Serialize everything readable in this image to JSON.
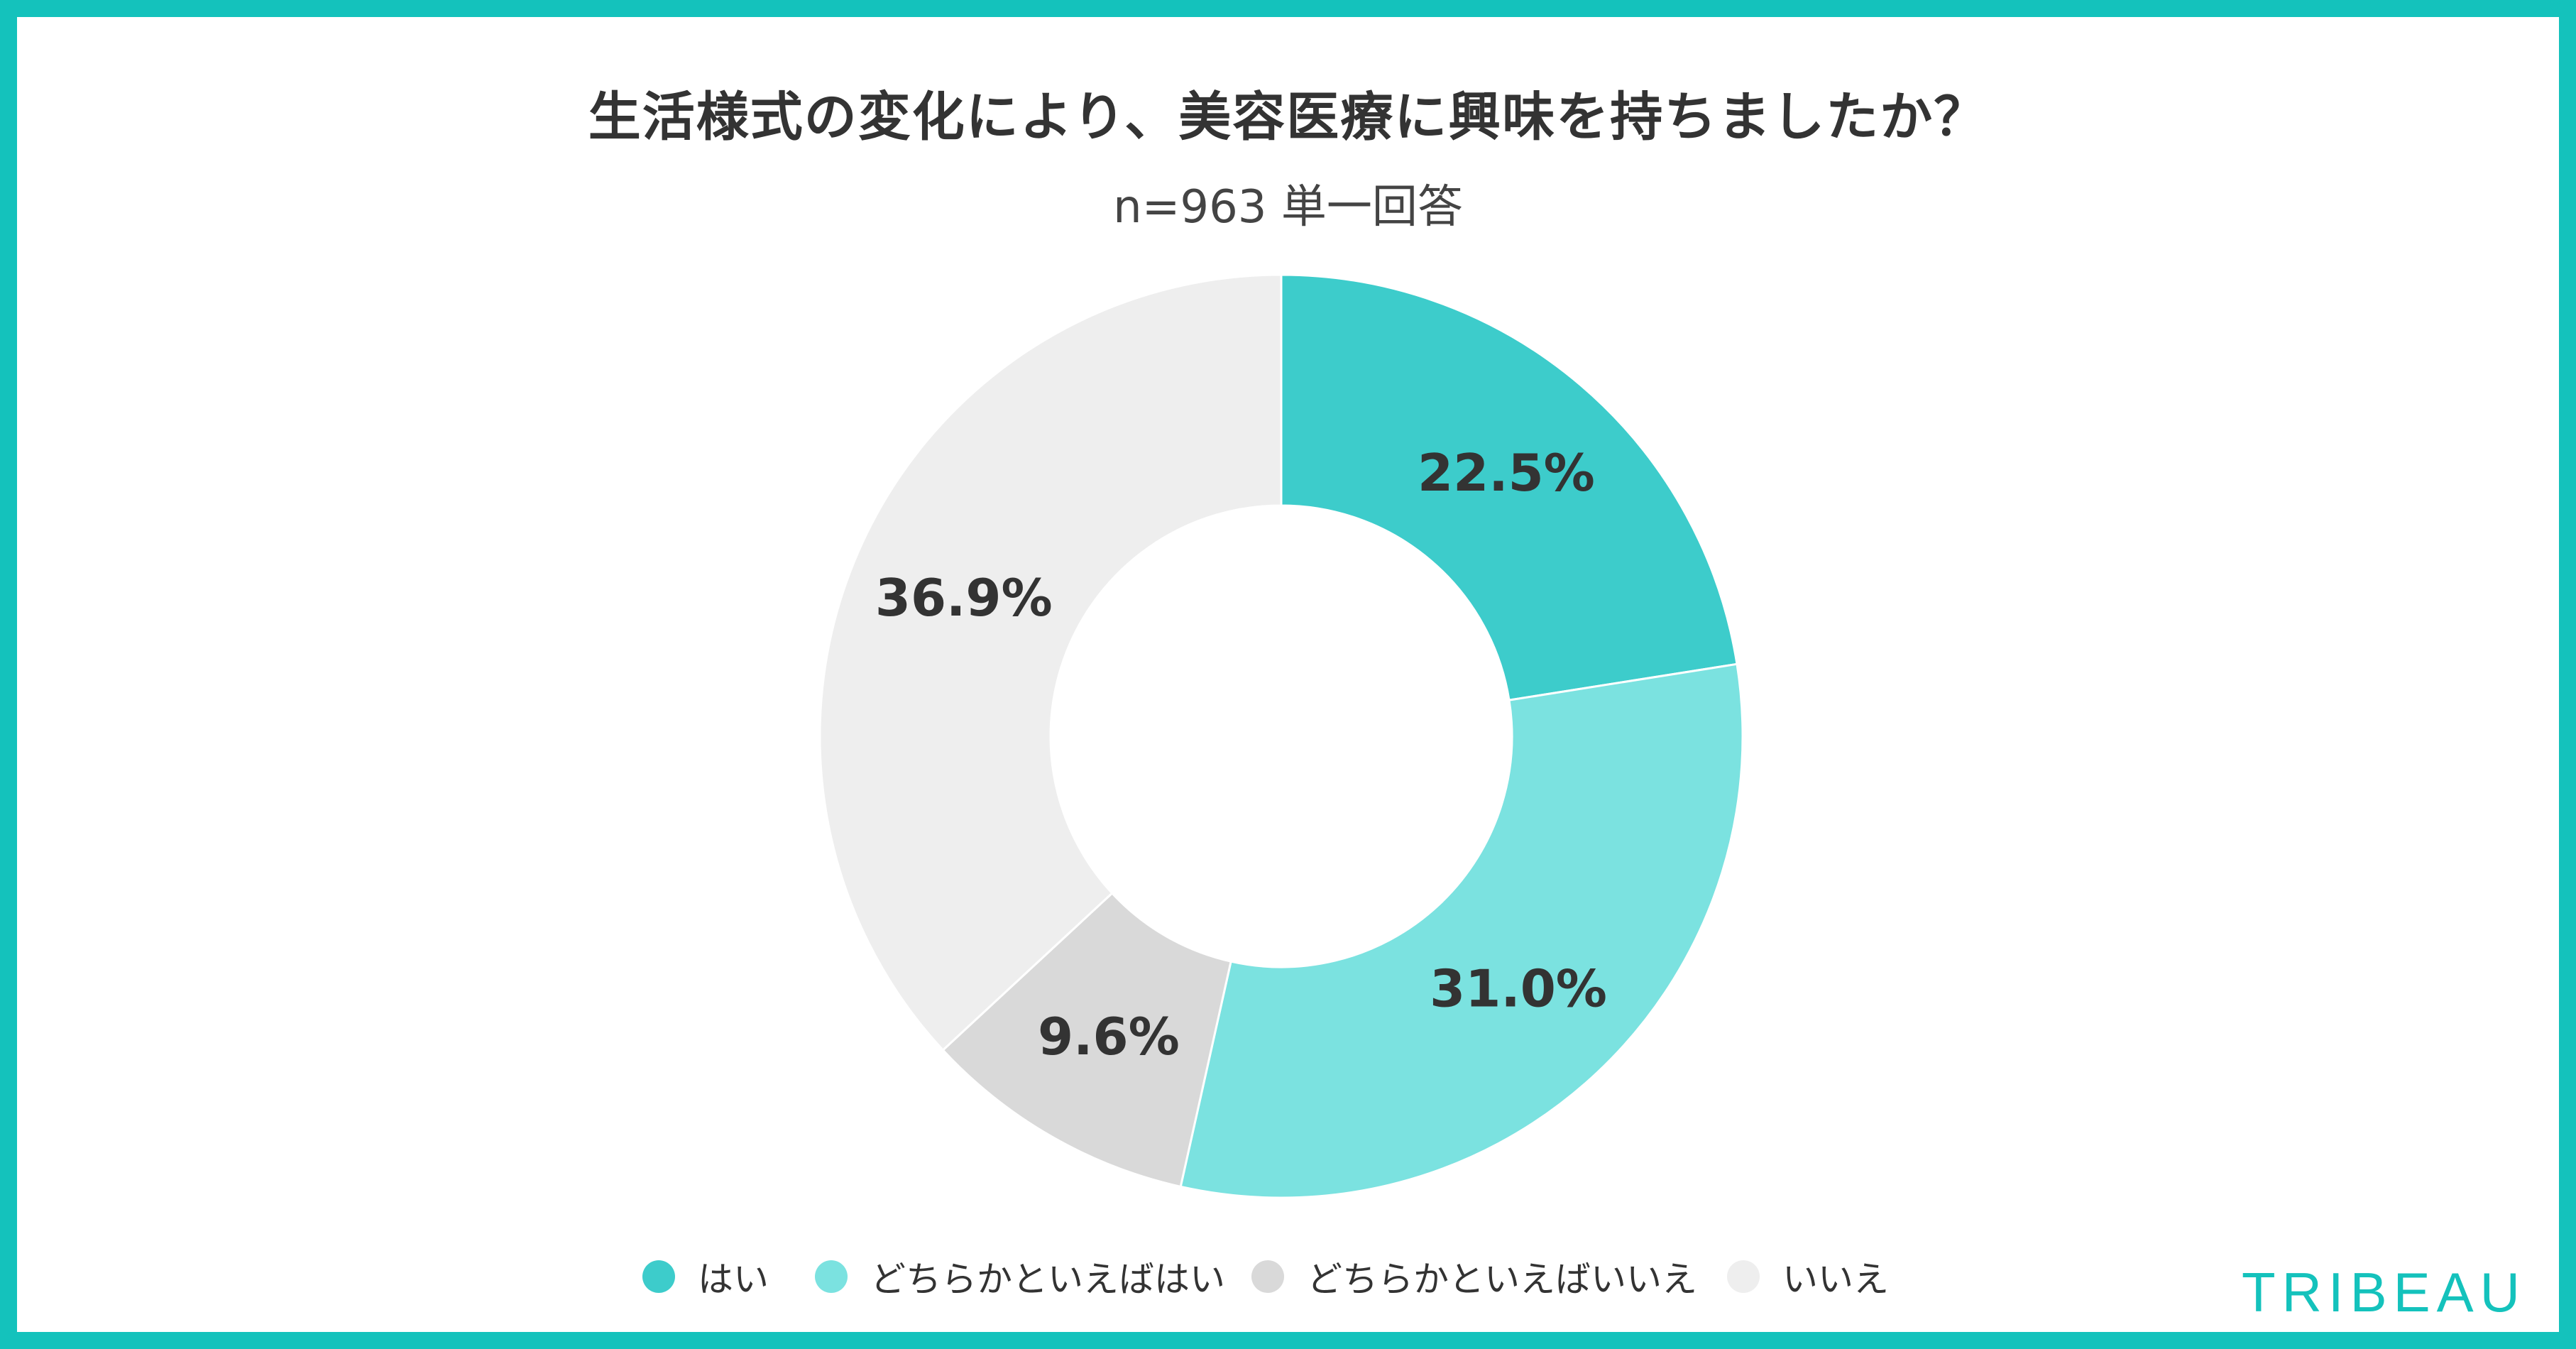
{
  "chart_data": {
    "type": "pie",
    "donut": true,
    "title": "生活様式の変化により、美容医療に興味を持ちましたか？",
    "subtitle": "n=963 単一回答",
    "categories": [
      "はい",
      "どちらかといえばはい",
      "どちらかといえばいいえ",
      "いいえ"
    ],
    "values": [
      22.5,
      31.0,
      9.6,
      36.9
    ],
    "value_labels": [
      "22.5%",
      "31.0%",
      "9.6%",
      "36.9%"
    ],
    "colors": [
      "#3dcccb",
      "#7be2e0",
      "#d9d9d9",
      "#eeeeee"
    ],
    "start_angle": "12 o'clock",
    "direction": "clockwise",
    "legend_position": "bottom"
  },
  "brand": {
    "name": "TRIBEAU",
    "color": "#14c2bc"
  },
  "frame_color": "#14c2bc"
}
